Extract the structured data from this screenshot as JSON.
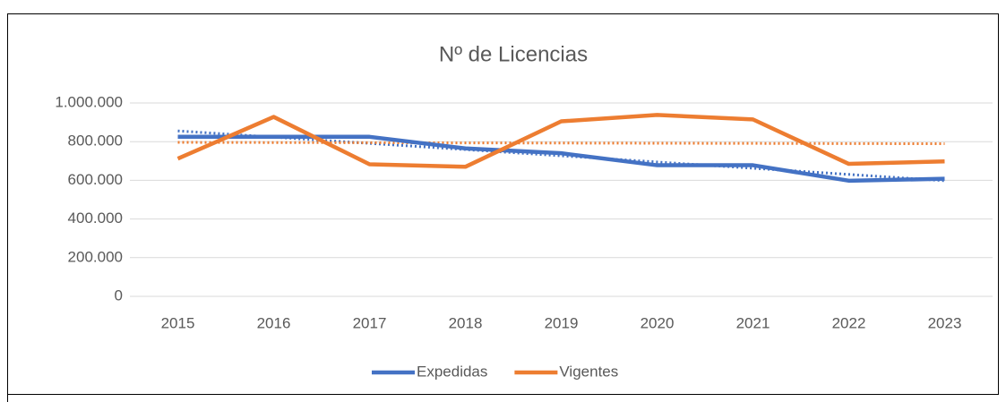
{
  "chart_data": {
    "type": "line",
    "title": "Nº de Licencias",
    "categories": [
      "2015",
      "2016",
      "2017",
      "2018",
      "2019",
      "2020",
      "2021",
      "2022",
      "2023"
    ],
    "series": [
      {
        "name": "Expedidas",
        "color": "#4472c4",
        "trendline": true,
        "values": [
          825000,
          825000,
          825000,
          765000,
          740000,
          678000,
          678000,
          598000,
          608000
        ]
      },
      {
        "name": "Vigentes",
        "color": "#ed7d31",
        "trendline": true,
        "values": [
          712000,
          928000,
          683000,
          670000,
          905000,
          938000,
          915000,
          685000,
          698000
        ]
      }
    ],
    "ylim": [
      0,
      1000000
    ],
    "yticks": [
      0,
      {
        "value": 200000,
        "label": "200.000"
      },
      {
        "value": 400000,
        "label": "400.000"
      },
      {
        "value": 600000,
        "label": "600.000"
      },
      {
        "value": 800000,
        "label": "800.000"
      },
      {
        "value": 1000000,
        "label": "1.000.000"
      }
    ],
    "grid": true,
    "legend": "bottom"
  }
}
